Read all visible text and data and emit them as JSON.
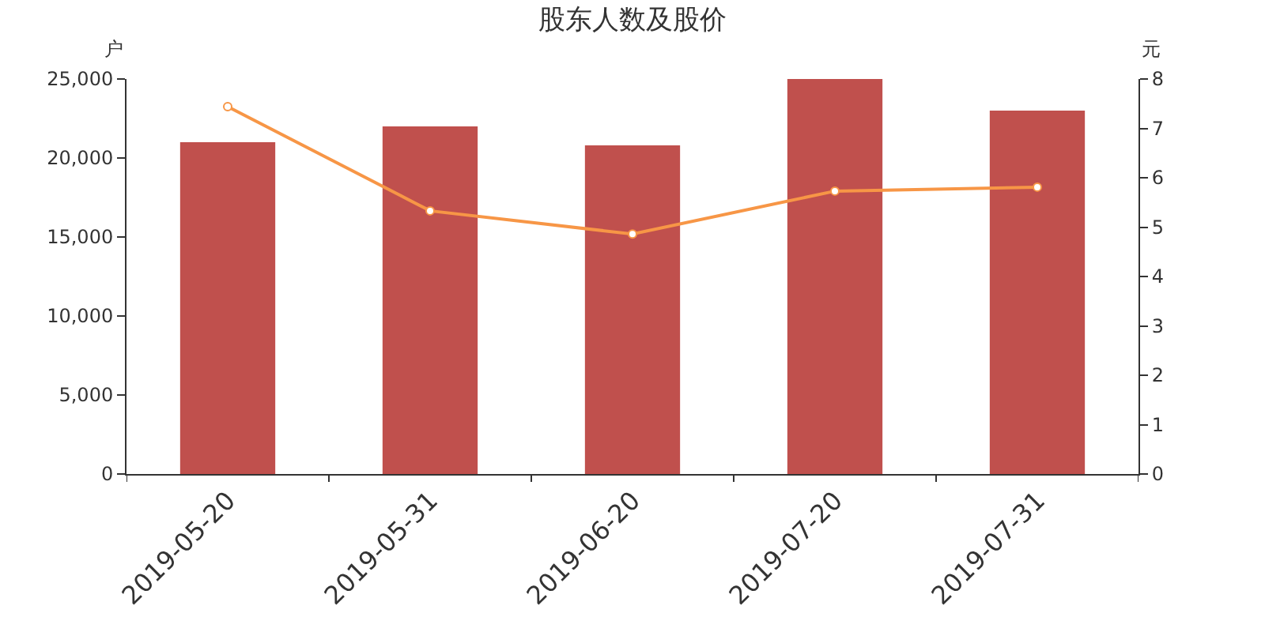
{
  "chart_data": {
    "type": "bar",
    "title": "股东人数及股价",
    "ylabel": "户",
    "y2label": "元",
    "categories": [
      "2019-05-20",
      "2019-05-31",
      "2019-06-20",
      "2019-07-20",
      "2019-07-31"
    ],
    "series": [
      {
        "color": "#c0504d",
        "values": [
          21000,
          22000,
          20800,
          25000,
          23000
        ]
      },
      {
        "type": "line",
        "axis": "y2",
        "color": "#f79646",
        "marker": "circle",
        "values": [
          7.44,
          5.33,
          4.86,
          5.73,
          5.81
        ]
      }
    ],
    "ylim": [
      0,
      25000
    ],
    "yticks": [
      {
        "value": 0,
        "label": "0"
      },
      {
        "value": 5000,
        "label": "5,000"
      },
      {
        "value": 10000,
        "label": "10,000"
      },
      {
        "value": 15000,
        "label": "15,000"
      },
      {
        "value": 20000,
        "label": "20,000"
      },
      {
        "value": 25000,
        "label": "25,000"
      }
    ],
    "y2lim": [
      0,
      8
    ],
    "y2ticks": [
      0,
      1,
      2,
      3,
      4,
      5,
      6,
      7,
      8
    ]
  }
}
